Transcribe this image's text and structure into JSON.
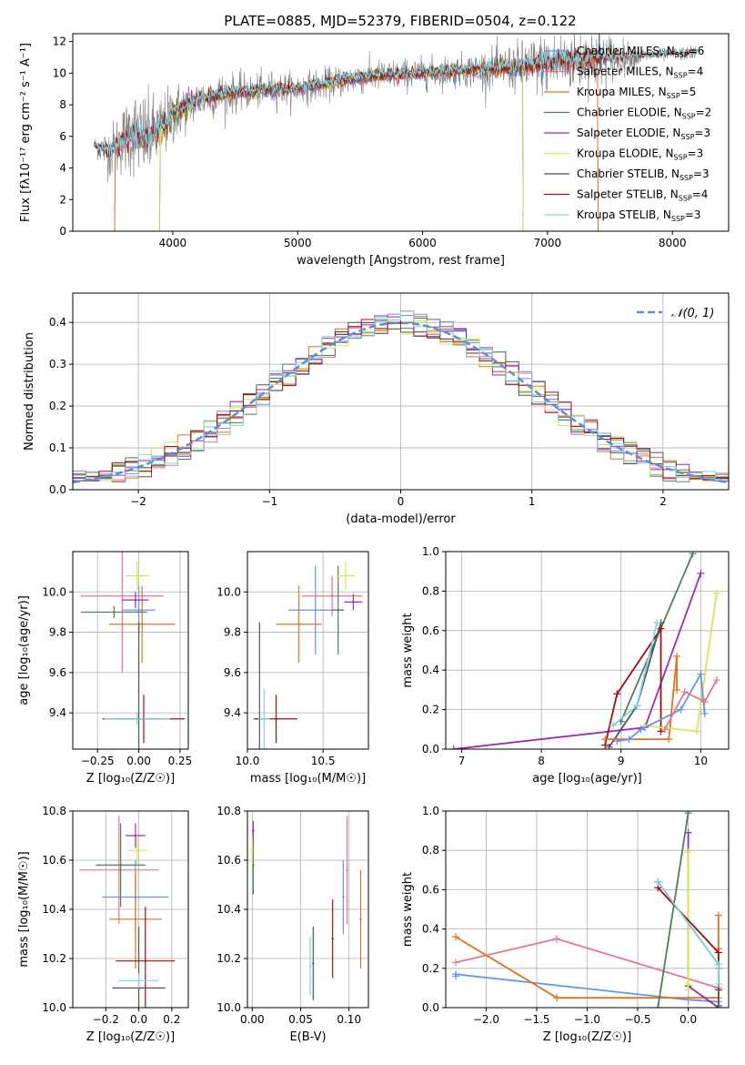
{
  "figure": {
    "title": "PLATE=0885, MJD=52379, FIBERID=0504, z=0.122"
  },
  "colors": {
    "data_spectrum": "#808080",
    "chabrier_miles": "#6495ed",
    "salpeter_miles": "#e8768b",
    "kroupa_miles": "#e0731b",
    "chabrier_elodie": "#4d7f57",
    "salpeter_elodie": "#9a2cb8",
    "kroupa_elodie": "#d4e84f",
    "chabrier_stelib": "#555555",
    "salpeter_stelib": "#a01010",
    "kroupa_stelib": "#7fd6e0",
    "gaussian": "#5b8fd9",
    "grid": "#b0b0b0"
  },
  "chart_data": [
    {
      "id": "spectrum",
      "type": "line",
      "title": "PLATE=0885, MJD=52379, FIBERID=0504, z=0.122",
      "xlabel": "wavelength [Angstrom, rest frame]",
      "ylabel": "Flux [fλ10⁻¹⁷ erg cm⁻² s⁻¹ A⁻¹]",
      "xlim": [
        3200,
        8450
      ],
      "ylim": [
        0,
        12.5
      ],
      "xticks": [
        4000,
        5000,
        6000,
        7000,
        8000
      ],
      "yticks": [
        0,
        2,
        4,
        6,
        8,
        10,
        12
      ],
      "grid": false,
      "legend_position": "top-right",
      "data_envelope": {
        "x": [
          3370,
          3500,
          3600,
          3700,
          3800,
          3900,
          4000,
          4200,
          4400,
          4600,
          4800,
          5000,
          5200,
          5400,
          5600,
          5800,
          6000,
          6200,
          6400,
          6600,
          6800,
          7000,
          7200,
          7400,
          7600,
          7800,
          8000,
          8200
        ],
        "y": [
          5.4,
          5.0,
          5.8,
          6.2,
          5.9,
          6.4,
          7.4,
          8.3,
          8.7,
          8.8,
          9.0,
          9.0,
          9.3,
          9.6,
          9.8,
          9.9,
          10.0,
          10.1,
          10.2,
          10.3,
          10.4,
          10.6,
          10.8,
          11.0,
          11.0,
          11.1,
          11.2,
          11.3
        ],
        "noise_amplitude": [
          0.5,
          1.5,
          2.0,
          2.5,
          2.5,
          2.0,
          1.8,
          1.2,
          1.2,
          1.0,
          1.0,
          0.9,
          0.9,
          0.9,
          0.9,
          0.9,
          0.9,
          0.9,
          1.0,
          1.2,
          1.5,
          1.8,
          1.8,
          1.8,
          1.0,
          0.4,
          0.4,
          0.4
        ]
      },
      "legend": [
        {
          "label": "Chabrier MILES, N",
          "sub": "SSP",
          "suffix": "=6",
          "color_key": "chabrier_miles"
        },
        {
          "label": "Salpeter MILES, N",
          "sub": "SSP",
          "suffix": "=4",
          "color_key": "salpeter_miles"
        },
        {
          "label": "Kroupa MILES, N",
          "sub": "SSP",
          "suffix": "=5",
          "color_key": "kroupa_miles"
        },
        {
          "label": "Chabrier ELODIE, N",
          "sub": "SSP",
          "suffix": "=2",
          "color_key": "chabrier_elodie"
        },
        {
          "label": "Salpeter ELODIE, N",
          "sub": "SSP",
          "suffix": "=3",
          "color_key": "salpeter_elodie"
        },
        {
          "label": "Kroupa ELODIE, N",
          "sub": "SSP",
          "suffix": "=3",
          "color_key": "kroupa_elodie"
        },
        {
          "label": "Chabrier STELIB, N",
          "sub": "SSP",
          "suffix": "=3",
          "color_key": "chabrier_stelib"
        },
        {
          "label": "Salpeter STELIB, N",
          "sub": "SSP",
          "suffix": "=4",
          "color_key": "salpeter_stelib"
        },
        {
          "label": "Kroupa STELIB, N",
          "sub": "SSP",
          "suffix": "=3",
          "color_key": "kroupa_stelib"
        }
      ]
    },
    {
      "id": "residuals",
      "type": "histogram",
      "xlabel": "(data-model)/error",
      "ylabel": "Normed distribution",
      "xlim": [
        -2.5,
        2.5
      ],
      "ylim": [
        0,
        0.47
      ],
      "xticks": [
        -2,
        -1,
        0,
        1,
        2
      ],
      "yticks": [
        0.0,
        0.1,
        0.2,
        0.3,
        0.4
      ],
      "grid": true,
      "legend_position": "top-right",
      "gaussian_label": "𝒩(0, 1)",
      "bin_width": 0.1,
      "bin_start": -2.5,
      "series_colors": [
        "chabrier_miles",
        "salpeter_miles",
        "kroupa_miles",
        "chabrier_elodie",
        "salpeter_elodie",
        "kroupa_elodie",
        "chabrier_stelib",
        "salpeter_stelib",
        "kroupa_stelib"
      ]
    },
    {
      "id": "age_vs_Z",
      "type": "errorbar",
      "xlabel": "Z [log₁₀(Z/Z☉)]",
      "ylabel": "age  [log₁₀(age/yr)]",
      "xlim": [
        -0.4,
        0.3
      ],
      "ylim": [
        9.22,
        10.2
      ],
      "xticks": [
        -0.25,
        0.0,
        0.25
      ],
      "xticklabels": [
        "−0.25",
        "0.00",
        "0.25"
      ],
      "yticks": [
        9.4,
        9.6,
        9.8,
        10.0
      ],
      "grid": true,
      "points": [
        {
          "color_key": "chabrier_miles",
          "x": 0.0,
          "y": 9.91,
          "xerr": 0.1,
          "yerr": 0.12
        },
        {
          "color_key": "salpeter_miles",
          "x": -0.1,
          "y": 9.98,
          "xerr": 0.25,
          "yerr": 0.38
        },
        {
          "color_key": "kroupa_miles",
          "x": 0.02,
          "y": 9.84,
          "xerr": 0.2,
          "yerr": 0.19
        },
        {
          "color_key": "chabrier_elodie",
          "x": -0.15,
          "y": 9.9,
          "xerr": 0.2,
          "yerr": 0.03
        },
        {
          "color_key": "salpeter_elodie",
          "x": -0.02,
          "y": 9.96,
          "xerr": 0.08,
          "yerr": 0.04
        },
        {
          "color_key": "kroupa_elodie",
          "x": -0.01,
          "y": 10.08,
          "xerr": 0.07,
          "yerr": 0.07
        },
        {
          "color_key": "chabrier_stelib",
          "x": 0.0,
          "y": 9.37,
          "xerr": 0.15,
          "yerr": 0.48
        },
        {
          "color_key": "salpeter_stelib",
          "x": 0.03,
          "y": 9.37,
          "xerr": 0.25,
          "yerr": 0.12
        },
        {
          "color_key": "kroupa_stelib",
          "x": -0.01,
          "y": 9.37,
          "xerr": 0.2,
          "yerr": 0.03
        }
      ]
    },
    {
      "id": "age_vs_mass",
      "type": "errorbar",
      "xlabel": "mass [log₁₀(M/M☉)]",
      "ylabel": "",
      "xlim": [
        10.0,
        10.8
      ],
      "ylim": [
        9.22,
        10.2
      ],
      "xticks": [
        10.0,
        10.5
      ],
      "xticklabels": [
        "10.0",
        "10.5"
      ],
      "yticks": [
        9.4,
        9.6,
        9.8,
        10.0
      ],
      "grid": true,
      "points": [
        {
          "color_key": "chabrier_miles",
          "x": 10.45,
          "y": 9.91,
          "xerr": 0.18,
          "yerr": 0.22
        },
        {
          "color_key": "salpeter_miles",
          "x": 10.56,
          "y": 9.98,
          "xerr": 0.2,
          "yerr": 0.1
        },
        {
          "color_key": "kroupa_miles",
          "x": 10.34,
          "y": 9.84,
          "xerr": 0.15,
          "yerr": 0.19
        },
        {
          "color_key": "chabrier_elodie",
          "x": 10.6,
          "y": 9.91,
          "xerr": 0.04,
          "yerr": 0.22
        },
        {
          "color_key": "salpeter_elodie",
          "x": 10.7,
          "y": 9.95,
          "xerr": 0.06,
          "yerr": 0.04
        },
        {
          "color_key": "kroupa_elodie",
          "x": 10.65,
          "y": 10.08,
          "xerr": 0.06,
          "yerr": 0.07
        },
        {
          "color_key": "chabrier_stelib",
          "x": 10.08,
          "y": 9.37,
          "xerr": 0.04,
          "yerr": 0.48
        },
        {
          "color_key": "salpeter_stelib",
          "x": 10.19,
          "y": 9.37,
          "xerr": 0.14,
          "yerr": 0.12
        },
        {
          "color_key": "kroupa_stelib",
          "x": 10.11,
          "y": 9.37,
          "xerr": 0.04,
          "yerr": 0.15
        }
      ]
    },
    {
      "id": "mw_vs_age",
      "type": "line",
      "xlabel": "age  [log₁₀(age/yr)]",
      "ylabel": "mass weight",
      "xlim": [
        6.8,
        10.35
      ],
      "ylim": [
        0.0,
        1.0
      ],
      "xticks": [
        7,
        8,
        9,
        10
      ],
      "yticks": [
        0.0,
        0.2,
        0.4,
        0.6,
        0.8,
        1.0
      ],
      "grid": true,
      "series": [
        {
          "color_key": "salpeter_elodie",
          "x": [
            6.9,
            9.3,
            10.0
          ],
          "y": [
            0.0,
            0.11,
            0.89
          ]
        },
        {
          "color_key": "chabrier_elodie",
          "x": [
            9.0,
            9.9
          ],
          "y": [
            0.14,
            0.99
          ]
        },
        {
          "color_key": "salpeter_stelib",
          "x": [
            8.8,
            8.95,
            9.5,
            9.5
          ],
          "y": [
            0.02,
            0.28,
            0.61,
            0.09
          ]
        },
        {
          "color_key": "chabrier_stelib",
          "x": [
            8.85,
            9.2,
            9.5
          ],
          "y": [
            0.01,
            0.22,
            0.64
          ]
        },
        {
          "color_key": "kroupa_stelib",
          "x": [
            8.9,
            9.2,
            9.45
          ],
          "y": [
            0.12,
            0.22,
            0.64
          ]
        },
        {
          "color_key": "kroupa_miles",
          "x": [
            8.8,
            9.6,
            9.7,
            9.7
          ],
          "y": [
            0.05,
            0.05,
            0.47,
            0.3
          ]
        },
        {
          "color_key": "kroupa_elodie",
          "x": [
            9.3,
            9.95,
            10.2
          ],
          "y": [
            0.12,
            0.09,
            0.79
          ]
        },
        {
          "color_key": "chabrier_miles",
          "x": [
            8.95,
            9.1,
            9.25,
            9.75,
            10.0,
            10.05
          ],
          "y": [
            0.04,
            0.05,
            0.1,
            0.2,
            0.38,
            0.18
          ]
        },
        {
          "color_key": "salpeter_miles",
          "x": [
            9.55,
            9.8,
            10.05,
            10.2
          ],
          "y": [
            0.1,
            0.29,
            0.24,
            0.35
          ]
        }
      ]
    },
    {
      "id": "mass_vs_Z",
      "type": "errorbar",
      "xlabel": "Z [log₁₀(Z/Z☉)]",
      "ylabel": "mass [log₁₀(M/M☉)]",
      "xlim": [
        -0.4,
        0.3
      ],
      "ylim": [
        10.0,
        10.8
      ],
      "xticks": [
        -0.2,
        0.0,
        0.2
      ],
      "xticklabels": [
        "−0.2",
        "0.0",
        "0.2"
      ],
      "yticks": [
        10.0,
        10.2,
        10.4,
        10.6,
        10.8
      ],
      "grid": true,
      "points": [
        {
          "color_key": "chabrier_miles",
          "x": -0.02,
          "y": 10.45,
          "xerr": 0.2,
          "yerr": 0.15
        },
        {
          "color_key": "salpeter_miles",
          "x": -0.12,
          "y": 10.56,
          "xerr": 0.24,
          "yerr": 0.22
        },
        {
          "color_key": "kroupa_miles",
          "x": -0.02,
          "y": 10.36,
          "xerr": 0.16,
          "yerr": 0.2
        },
        {
          "color_key": "chabrier_elodie",
          "x": -0.11,
          "y": 10.58,
          "xerr": 0.15,
          "yerr": 0.17
        },
        {
          "color_key": "salpeter_elodie",
          "x": -0.02,
          "y": 10.7,
          "xerr": 0.06,
          "yerr": 0.05
        },
        {
          "color_key": "kroupa_elodie",
          "x": -0.01,
          "y": 10.64,
          "xerr": 0.06,
          "yerr": 0.06
        },
        {
          "color_key": "chabrier_stelib",
          "x": 0.0,
          "y": 10.08,
          "xerr": 0.16,
          "yerr": 0.25
        },
        {
          "color_key": "salpeter_stelib",
          "x": 0.04,
          "y": 10.19,
          "xerr": 0.18,
          "yerr": 0.22
        },
        {
          "color_key": "kroupa_stelib",
          "x": 0.0,
          "y": 10.11,
          "xerr": 0.12,
          "yerr": 0.03
        }
      ]
    },
    {
      "id": "mass_vs_ebv",
      "type": "errorbar",
      "xlabel": "E(B-V)",
      "ylabel": "",
      "xlim": [
        -0.005,
        0.12
      ],
      "ylim": [
        10.0,
        10.8
      ],
      "xticks": [
        0.0,
        0.05,
        0.1
      ],
      "xticklabels": [
        "0.00",
        "0.05",
        "0.10"
      ],
      "yticks": [
        10.0,
        10.2,
        10.4,
        10.6,
        10.8
      ],
      "grid": true,
      "points": [
        {
          "color_key": "chabrier_miles",
          "x": 0.094,
          "y": 10.45,
          "xerr": 0.0,
          "yerr": 0.15
        },
        {
          "color_key": "salpeter_miles",
          "x": 0.098,
          "y": 10.56,
          "xerr": 0.0,
          "yerr": 0.22
        },
        {
          "color_key": "kroupa_miles",
          "x": 0.112,
          "y": 10.36,
          "xerr": 0.0,
          "yerr": 0.2
        },
        {
          "color_key": "chabrier_elodie",
          "x": 0.001,
          "y": 10.58,
          "xerr": 0.0,
          "yerr": 0.12
        },
        {
          "color_key": "salpeter_elodie",
          "x": 0.001,
          "y": 10.72,
          "xerr": 0.0,
          "yerr": 0.04
        },
        {
          "color_key": "kroupa_elodie",
          "x": 0.0,
          "y": 10.64,
          "xerr": 0.0,
          "yerr": 0.06
        },
        {
          "color_key": "chabrier_stelib",
          "x": 0.063,
          "y": 10.18,
          "xerr": 0.0,
          "yerr": 0.15
        },
        {
          "color_key": "salpeter_stelib",
          "x": 0.083,
          "y": 10.28,
          "xerr": 0.0,
          "yerr": 0.16
        },
        {
          "color_key": "kroupa_stelib",
          "x": 0.06,
          "y": 10.17,
          "xerr": 0.0,
          "yerr": 0.12
        }
      ]
    },
    {
      "id": "mw_vs_Z",
      "type": "line",
      "xlabel": "Z [log₁₀(Z/Z☉)]",
      "ylabel": "mass weight",
      "xlim": [
        -2.4,
        0.4
      ],
      "ylim": [
        0.0,
        1.0
      ],
      "xticks": [
        -2.0,
        -1.5,
        -1.0,
        -0.5,
        0.0
      ],
      "xticklabels": [
        "−2.0",
        "−1.5",
        "−1.0",
        "−0.5",
        "0.0"
      ],
      "yticks": [
        0.0,
        0.2,
        0.4,
        0.6,
        0.8,
        1.0
      ],
      "grid": true,
      "series": [
        {
          "color_key": "chabrier_miles",
          "x": [
            -2.3,
            -2.3,
            0.0,
            0.3,
            0.3
          ],
          "y": [
            0.16,
            0.17,
            0.04,
            0.03,
            0.2
          ]
        },
        {
          "color_key": "kroupa_miles",
          "x": [
            -2.3,
            -1.3,
            0.3,
            0.3,
            0.3
          ],
          "y": [
            0.36,
            0.05,
            0.05,
            0.3,
            0.47
          ]
        },
        {
          "color_key": "salpeter_miles",
          "x": [
            -2.3,
            -1.3,
            0.3
          ],
          "y": [
            0.23,
            0.35,
            0.1
          ]
        },
        {
          "color_key": "chabrier_elodie",
          "x": [
            -0.3,
            0.0
          ],
          "y": [
            0.0,
            0.99
          ]
        },
        {
          "color_key": "salpeter_elodie",
          "x": [
            0.0,
            0.0,
            0.3
          ],
          "y": [
            0.89,
            0.11,
            0.0
          ]
        },
        {
          "color_key": "kroupa_elodie",
          "x": [
            0.0,
            0.0,
            0.0
          ],
          "y": [
            0.79,
            0.12,
            0.09
          ]
        },
        {
          "color_key": "salpeter_stelib",
          "x": [
            -0.3,
            0.3,
            0.3
          ],
          "y": [
            0.61,
            0.28,
            0.09
          ]
        },
        {
          "color_key": "chabrier_stelib",
          "x": [
            -0.3,
            0.3,
            0.3
          ],
          "y": [
            0.64,
            0.22,
            0.01
          ]
        },
        {
          "color_key": "kroupa_stelib",
          "x": [
            -0.3,
            0.3,
            0.3
          ],
          "y": [
            0.64,
            0.22,
            0.12
          ]
        }
      ]
    }
  ]
}
